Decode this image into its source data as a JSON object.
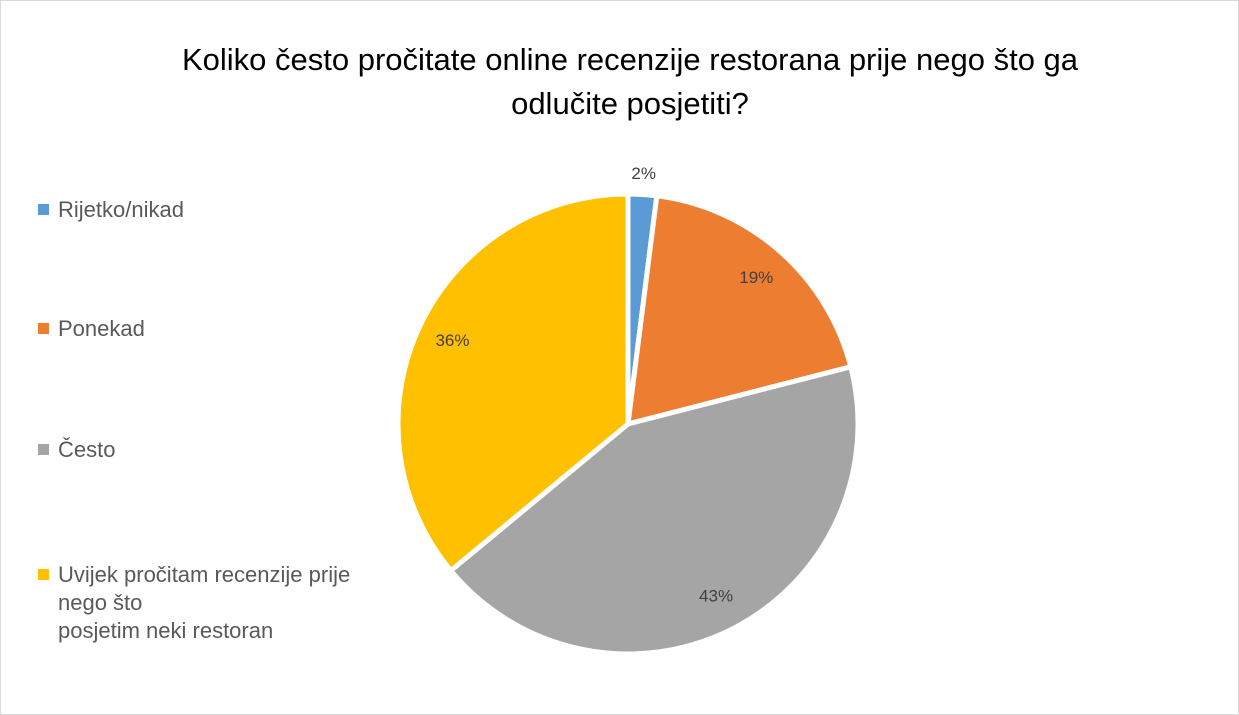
{
  "chart_data": {
    "type": "pie",
    "title": "Koliko često pročitate online recenzije restorana prije nego što ga odlučite posjetiti?",
    "categories": [
      "Rijetko/nikad",
      "Ponekad",
      "Često",
      "Uvijek pročitam recenzije prije nego što\nposjetim neki restoran"
    ],
    "values": [
      2,
      19,
      43,
      36
    ],
    "value_labels": [
      "2%",
      "19%",
      "43%",
      "36%"
    ],
    "colors": [
      "#5b9bd5",
      "#ed7d31",
      "#a5a5a5",
      "#ffc000"
    ],
    "legend": "left"
  }
}
